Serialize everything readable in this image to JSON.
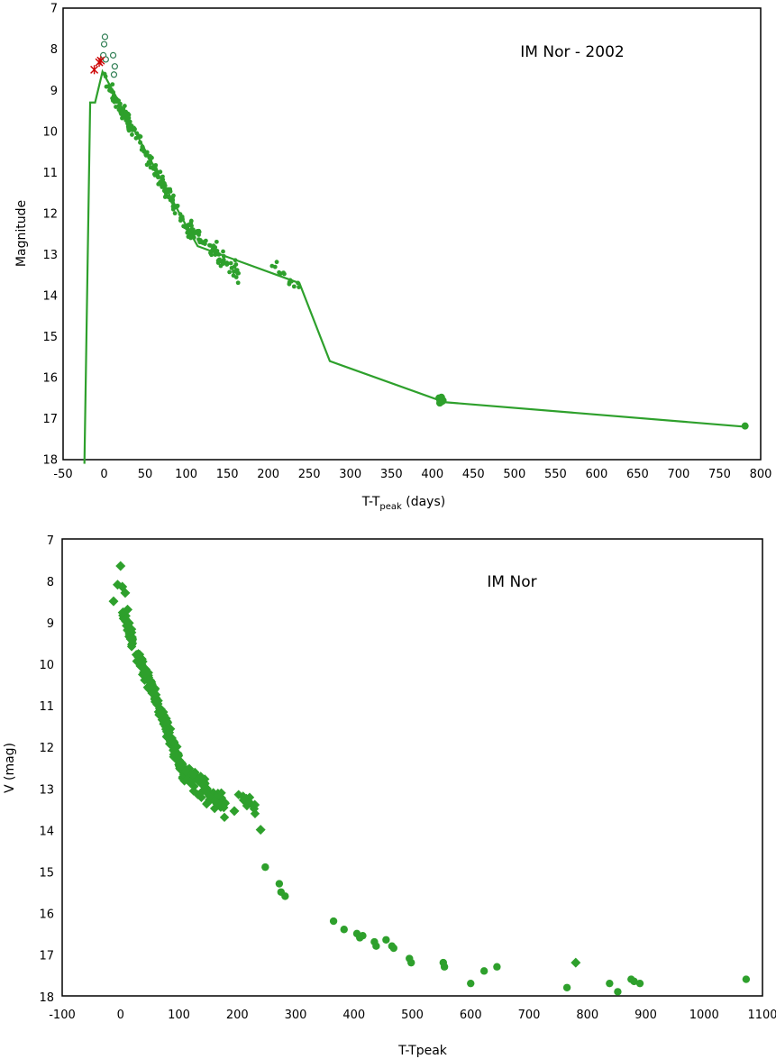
{
  "chart_data": [
    {
      "type": "scatter",
      "title": "IM Nor - 2002",
      "xlabel_main": "T-T",
      "xlabel_sub": "peak",
      "xlabel_rest": " (days)",
      "ylabel": "Magnitude",
      "xlim": [
        -50,
        800
      ],
      "ylim": [
        7,
        18
      ],
      "y_inverted": true,
      "xticks": [
        -50,
        0,
        50,
        100,
        150,
        200,
        250,
        300,
        350,
        400,
        450,
        500,
        550,
        600,
        650,
        700,
        750,
        800
      ],
      "yticks": [
        7,
        8,
        9,
        10,
        11,
        12,
        13,
        14,
        15,
        16,
        17,
        18
      ],
      "grid": false,
      "colors": {
        "main": "#2ea02c",
        "open": "#2e7d52",
        "star": "#cc0000"
      },
      "series": [
        {
          "name": "template",
          "kind": "line",
          "x": [
            -24,
            -17,
            -11,
            -2,
            100,
            114,
            238,
            275,
            415,
            782
          ],
          "y": [
            18.1,
            9.3,
            9.3,
            8.55,
            12.3,
            12.8,
            13.7,
            15.6,
            16.6,
            17.2
          ]
        },
        {
          "name": "open circles",
          "kind": "open-circle",
          "x": [
            1,
            0,
            -1,
            11,
            13,
            12,
            2
          ],
          "y": [
            7.7,
            7.88,
            8.15,
            8.15,
            8.42,
            8.62,
            8.25
          ]
        },
        {
          "name": "stars",
          "kind": "star",
          "x": [
            -12,
            -6,
            -4
          ],
          "y": [
            8.5,
            8.32,
            8.28
          ]
        },
        {
          "name": "late points",
          "kind": "dot",
          "x": [
            408,
            409,
            410,
            411,
            412,
            409,
            411,
            413,
            781
          ],
          "y": [
            16.5,
            16.55,
            16.6,
            16.52,
            16.58,
            16.62,
            16.48,
            16.56,
            17.18
          ]
        }
      ],
      "dense_segments": [
        {
          "x0": 0,
          "x1": 105,
          "y0": 8.7,
          "y1": 12.5,
          "n": 170,
          "noise": 0.28,
          "size": 2.4
        },
        {
          "x0": 105,
          "x1": 165,
          "y0": 12.4,
          "y1": 13.5,
          "n": 75,
          "noise": 0.35,
          "size": 2.4
        },
        {
          "x0": 200,
          "x1": 240,
          "y0": 13.1,
          "y1": 13.9,
          "n": 14,
          "noise": 0.25,
          "size": 2.4
        }
      ]
    },
    {
      "type": "scatter",
      "title": "IM Nor",
      "xlabel": "T-Tpeak",
      "ylabel": "V (mag)",
      "xlim": [
        -100,
        1100
      ],
      "ylim": [
        7,
        18
      ],
      "y_inverted": true,
      "xticks": [
        -100,
        0,
        100,
        200,
        300,
        400,
        500,
        600,
        700,
        800,
        900,
        1000,
        1100
      ],
      "yticks": [
        7,
        8,
        9,
        10,
        11,
        12,
        13,
        14,
        15,
        16,
        17,
        18
      ],
      "grid": false,
      "colors": {
        "main": "#2ea02c"
      },
      "series": [
        {
          "name": "diamonds",
          "kind": "diamond",
          "x": [
            0,
            -12,
            -5,
            3,
            8,
            12,
            240,
            230,
            210,
            195,
            780
          ],
          "y": [
            7.65,
            8.5,
            8.1,
            8.15,
            8.3,
            8.7,
            14.0,
            13.4,
            13.2,
            13.55,
            17.2
          ]
        },
        {
          "name": "circles",
          "kind": "circle",
          "x": [
            100,
            248,
            272,
            275,
            282,
            365,
            383,
            405,
            410,
            415,
            435,
            438,
            455,
            465,
            468,
            495,
            498,
            553,
            555,
            600,
            623,
            645,
            765,
            838,
            852,
            875,
            880,
            890,
            1072
          ],
          "y": [
            12.2,
            14.9,
            15.3,
            15.5,
            15.6,
            16.2,
            16.4,
            16.5,
            16.6,
            16.55,
            16.7,
            16.8,
            16.65,
            16.8,
            16.85,
            17.1,
            17.2,
            17.2,
            17.3,
            17.7,
            17.4,
            17.3,
            17.8,
            17.7,
            17.9,
            17.6,
            17.65,
            17.7,
            17.6
          ]
        }
      ],
      "dense_segments": [
        {
          "x0": 0,
          "x1": 110,
          "y0": 8.7,
          "y1": 12.7,
          "n": 190,
          "noise": 0.3,
          "size": 4
        },
        {
          "x0": 105,
          "x1": 180,
          "y0": 12.5,
          "y1": 13.5,
          "n": 70,
          "noise": 0.4,
          "size": 4
        },
        {
          "x0": 200,
          "x1": 240,
          "y0": 13.1,
          "y1": 13.6,
          "n": 10,
          "noise": 0.2,
          "size": 4
        }
      ]
    }
  ]
}
